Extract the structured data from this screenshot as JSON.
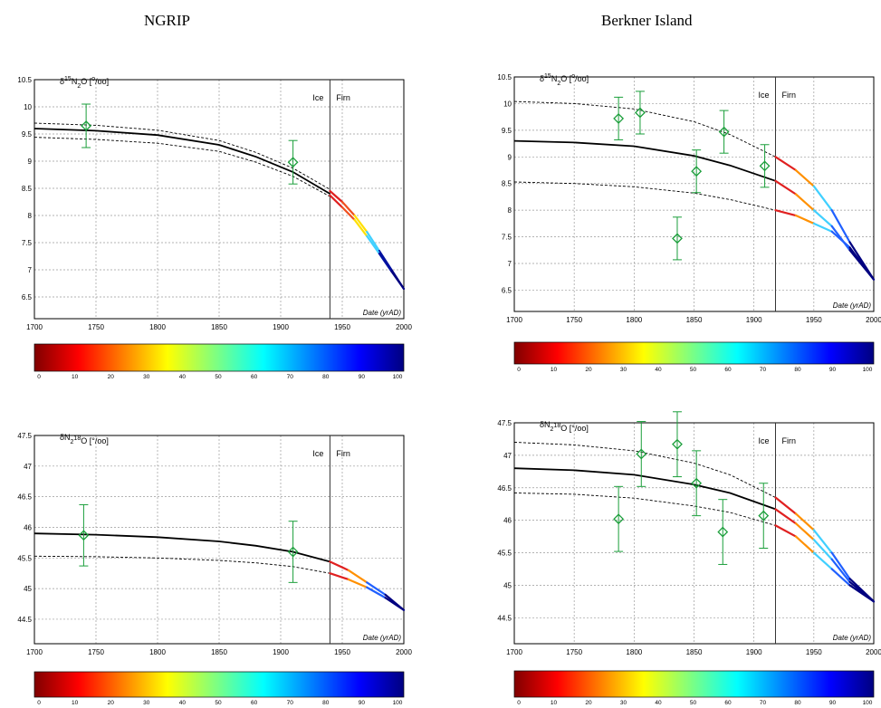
{
  "titles": {
    "left": "NGRIP",
    "right": "Berkner Island"
  },
  "chart_data": [
    {
      "type": "line",
      "panel": "NGRIP d15N2O",
      "ylabel_parts": {
        "pre": "δ",
        "sup1": "15",
        "mid1": "N",
        "sub": "2",
        "mid2": "O [",
        "sup2": "o",
        "post": "/oo]"
      },
      "xlabel": "Date (yrAD)",
      "xlim": [
        1700,
        2000
      ],
      "ylim": [
        6.1,
        10.5
      ],
      "xticks": [
        1700,
        1750,
        1800,
        1850,
        1900,
        1950,
        2000
      ],
      "yticks": [
        6.5,
        7,
        7.5,
        8,
        8.5,
        9,
        9.5,
        10,
        10.5
      ],
      "ice_firn_boundary": 1940,
      "region_labels": [
        "Ice",
        "Firn"
      ],
      "grid": true,
      "points": [
        {
          "x": 1742,
          "y": 9.65,
          "err": 0.4
        },
        {
          "x": 1910,
          "y": 8.98,
          "err": 0.4
        }
      ],
      "model": {
        "x": [
          1700,
          1750,
          1800,
          1850,
          1880,
          1910,
          1940
        ],
        "y": [
          9.6,
          9.56,
          9.48,
          9.3,
          9.08,
          8.8,
          8.4
        ]
      },
      "upper": {
        "x": [
          1700,
          1750,
          1800,
          1850,
          1880,
          1910,
          1940
        ],
        "y": [
          9.7,
          9.66,
          9.57,
          9.38,
          9.16,
          8.87,
          8.48
        ]
      },
      "lower": {
        "x": [
          1700,
          1750,
          1800,
          1850,
          1880,
          1910,
          1940
        ],
        "y": [
          9.44,
          9.4,
          9.33,
          9.18,
          8.98,
          8.72,
          8.35
        ]
      },
      "firn_curves": [
        {
          "x": [
            1940,
            1950,
            1960,
            1970,
            1980,
            1990,
            2000
          ],
          "y": [
            8.45,
            8.25,
            8.0,
            7.7,
            7.35,
            7.0,
            6.65
          ]
        },
        {
          "x": [
            1940,
            1950,
            1960,
            1970,
            1980,
            1990,
            2000
          ],
          "y": [
            8.37,
            8.15,
            7.92,
            7.62,
            7.3,
            6.97,
            6.65
          ]
        }
      ],
      "colorbar_ticks": [
        0,
        10,
        20,
        30,
        40,
        50,
        60,
        70,
        80,
        90,
        100
      ]
    },
    {
      "type": "line",
      "panel": "Berkner Island d15N2O",
      "ylabel_parts": {
        "pre": "δ",
        "sup1": "15",
        "mid1": "N",
        "sub": "2",
        "mid2": "O [",
        "sup2": "o",
        "post": "/oo]"
      },
      "xlabel": "Date (yrAD)",
      "xlim": [
        1700,
        2000
      ],
      "ylim": [
        6.1,
        10.5
      ],
      "xticks": [
        1700,
        1750,
        1800,
        1850,
        1900,
        1950,
        2000
      ],
      "yticks": [
        6.5,
        7,
        7.5,
        8,
        8.5,
        9,
        9.5,
        10,
        10.5
      ],
      "ice_firn_boundary": 1918,
      "region_labels": [
        "Ice",
        "Firn"
      ],
      "grid": true,
      "points": [
        {
          "x": 1787,
          "y": 9.72,
          "err": 0.4
        },
        {
          "x": 1805,
          "y": 9.83,
          "err": 0.4
        },
        {
          "x": 1836,
          "y": 7.47,
          "err": 0.4
        },
        {
          "x": 1852,
          "y": 8.73,
          "err": 0.4
        },
        {
          "x": 1875,
          "y": 9.47,
          "err": 0.4
        },
        {
          "x": 1909,
          "y": 8.83,
          "err": 0.4
        }
      ],
      "model": {
        "x": [
          1700,
          1750,
          1800,
          1850,
          1880,
          1918
        ],
        "y": [
          9.3,
          9.27,
          9.2,
          9.02,
          8.84,
          8.55
        ]
      },
      "upper": {
        "x": [
          1700,
          1750,
          1800,
          1850,
          1880,
          1918
        ],
        "y": [
          10.04,
          10.0,
          9.9,
          9.66,
          9.42,
          9.0
        ]
      },
      "lower": {
        "x": [
          1700,
          1750,
          1800,
          1850,
          1880,
          1918
        ],
        "y": [
          8.53,
          8.5,
          8.44,
          8.32,
          8.2,
          8.0
        ]
      },
      "firn_curves": [
        {
          "x": [
            1918,
            1935,
            1950,
            1965,
            1980,
            2000
          ],
          "y": [
            9.0,
            8.75,
            8.45,
            8.0,
            7.4,
            6.7
          ]
        },
        {
          "x": [
            1918,
            1935,
            1950,
            1965,
            1980,
            2000
          ],
          "y": [
            8.55,
            8.3,
            8.0,
            7.7,
            7.25,
            6.7
          ]
        },
        {
          "x": [
            1918,
            1935,
            1950,
            1965,
            1980,
            2000
          ],
          "y": [
            8.0,
            7.9,
            7.75,
            7.6,
            7.3,
            6.7
          ]
        }
      ],
      "colorbar_ticks": [
        0,
        10,
        20,
        30,
        40,
        50,
        60,
        70,
        80,
        90,
        100
      ]
    },
    {
      "type": "line",
      "panel": "NGRIP dN2 18O",
      "ylabel_parts": {
        "pre": "δ",
        "sup1": "",
        "mid1": "N",
        "sub": "2",
        "mid2": "",
        "sup2": "18",
        "post": "O [°/oo]"
      },
      "xlabel": "Date (yrAD)",
      "xlim": [
        1700,
        2000
      ],
      "ylim": [
        44.1,
        47.5
      ],
      "xticks": [
        1700,
        1750,
        1800,
        1850,
        1900,
        1950,
        2000
      ],
      "yticks": [
        44.5,
        45,
        45.5,
        46,
        46.5,
        47,
        47.5
      ],
      "ice_firn_boundary": 1940,
      "region_labels": [
        "Ice",
        "Firn"
      ],
      "grid": true,
      "points": [
        {
          "x": 1740,
          "y": 45.87,
          "err": 0.5
        },
        {
          "x": 1910,
          "y": 45.6,
          "err": 0.5
        }
      ],
      "model": {
        "x": [
          1700,
          1750,
          1800,
          1850,
          1880,
          1910,
          1940
        ],
        "y": [
          45.9,
          45.88,
          45.84,
          45.77,
          45.7,
          45.6,
          45.44
        ]
      },
      "upper": {
        "x": [
          1700,
          1750,
          1800,
          1850,
          1880,
          1910,
          1940
        ],
        "y": [
          45.9,
          45.88,
          45.84,
          45.77,
          45.7,
          45.6,
          45.44
        ]
      },
      "lower": {
        "x": [
          1700,
          1750,
          1800,
          1850,
          1880,
          1910,
          1940
        ],
        "y": [
          45.53,
          45.52,
          45.5,
          45.46,
          45.42,
          45.36,
          45.25
        ]
      },
      "firn_curves": [
        {
          "x": [
            1940,
            1955,
            1970,
            1985,
            2000
          ],
          "y": [
            45.44,
            45.3,
            45.1,
            44.9,
            44.65
          ]
        },
        {
          "x": [
            1940,
            1955,
            1970,
            1985,
            2000
          ],
          "y": [
            45.25,
            45.15,
            45.02,
            44.85,
            44.65
          ]
        }
      ],
      "colorbar_ticks": [
        0,
        10,
        20,
        30,
        40,
        50,
        60,
        70,
        80,
        90,
        100
      ]
    },
    {
      "type": "line",
      "panel": "Berkner Island dN2 18O",
      "ylabel_parts": {
        "pre": "δ",
        "sup1": "",
        "mid1": "N",
        "sub": "2",
        "mid2": "",
        "sup2": "18",
        "post": "O [°/oo]"
      },
      "xlabel": "Date (yrAD)",
      "xlim": [
        1700,
        2000
      ],
      "ylim": [
        44.1,
        47.5
      ],
      "xticks": [
        1700,
        1750,
        1800,
        1850,
        1900,
        1950,
        2000
      ],
      "yticks": [
        44.5,
        45,
        45.5,
        46,
        46.5,
        47,
        47.5
      ],
      "ice_firn_boundary": 1918,
      "region_labels": [
        "Ice",
        "Firn"
      ],
      "grid": true,
      "points": [
        {
          "x": 1787,
          "y": 46.02,
          "err": 0.5
        },
        {
          "x": 1806,
          "y": 47.02,
          "err": 0.5
        },
        {
          "x": 1836,
          "y": 47.17,
          "err": 0.5
        },
        {
          "x": 1852,
          "y": 46.57,
          "err": 0.5
        },
        {
          "x": 1874,
          "y": 45.82,
          "err": 0.5
        },
        {
          "x": 1908,
          "y": 46.07,
          "err": 0.5
        }
      ],
      "model": {
        "x": [
          1700,
          1750,
          1800,
          1850,
          1880,
          1918
        ],
        "y": [
          46.8,
          46.77,
          46.7,
          46.55,
          46.42,
          46.17
        ]
      },
      "upper": {
        "x": [
          1700,
          1750,
          1800,
          1850,
          1880,
          1918
        ],
        "y": [
          47.2,
          47.16,
          47.07,
          46.88,
          46.7,
          46.35
        ]
      },
      "lower": {
        "x": [
          1700,
          1750,
          1800,
          1850,
          1880,
          1918
        ],
        "y": [
          46.42,
          46.4,
          46.34,
          46.22,
          46.12,
          45.92
        ]
      },
      "firn_curves": [
        {
          "x": [
            1918,
            1935,
            1950,
            1965,
            1980,
            2000
          ],
          "y": [
            46.35,
            46.1,
            45.85,
            45.5,
            45.1,
            44.75
          ]
        },
        {
          "x": [
            1918,
            1935,
            1950,
            1965,
            1980,
            2000
          ],
          "y": [
            46.17,
            45.95,
            45.7,
            45.4,
            45.05,
            44.75
          ]
        },
        {
          "x": [
            1918,
            1935,
            1950,
            1965,
            1980,
            2000
          ],
          "y": [
            45.92,
            45.75,
            45.5,
            45.25,
            45.0,
            44.75
          ]
        }
      ],
      "colorbar_ticks": [
        0,
        10,
        20,
        30,
        40,
        50,
        60,
        70,
        80,
        90,
        100
      ]
    }
  ]
}
